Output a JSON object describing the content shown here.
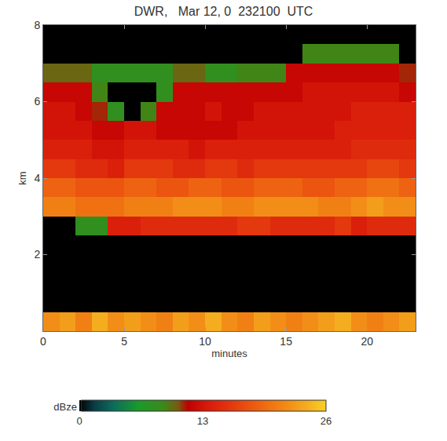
{
  "chart_data": {
    "type": "heatmap",
    "title": "DWR,   Mar 12, 0  232100  UTC",
    "xlabel": "minutes",
    "ylabel": "km",
    "x": [
      0.5,
      1.5,
      2.5,
      3.5,
      4.5,
      5.5,
      6.5,
      7.5,
      8.5,
      9.5,
      10.5,
      11.5,
      12.5,
      13.5,
      14.5,
      15.5,
      16.5,
      17.5,
      18.5,
      19.5,
      20.5,
      21.5,
      22.5
    ],
    "y": [
      0.25,
      0.75,
      1.25,
      1.75,
      2.25,
      2.75,
      3.25,
      3.75,
      4.25,
      4.75,
      5.25,
      5.75,
      6.25,
      6.75,
      7.25,
      7.75
    ],
    "z": [
      [
        22,
        23,
        21,
        24,
        22,
        23,
        22,
        21,
        23,
        22,
        24,
        22,
        21,
        23,
        22,
        21,
        22,
        23,
        24,
        22,
        21,
        22,
        23
      ],
      [
        null,
        null,
        null,
        null,
        null,
        null,
        null,
        null,
        null,
        null,
        null,
        null,
        null,
        null,
        null,
        null,
        null,
        null,
        null,
        null,
        null,
        null,
        null
      ],
      [
        null,
        null,
        null,
        null,
        null,
        null,
        null,
        null,
        null,
        null,
        null,
        null,
        null,
        null,
        null,
        null,
        null,
        null,
        null,
        null,
        null,
        null,
        null
      ],
      [
        null,
        null,
        null,
        null,
        null,
        null,
        null,
        null,
        null,
        null,
        null,
        null,
        null,
        null,
        null,
        null,
        null,
        null,
        null,
        null,
        null,
        null,
        null
      ],
      [
        null,
        null,
        null,
        null,
        null,
        null,
        null,
        null,
        null,
        null,
        null,
        null,
        null,
        null,
        null,
        null,
        null,
        null,
        null,
        null,
        null,
        null,
        null
      ],
      [
        null,
        null,
        8,
        8,
        14,
        14,
        15,
        15,
        15,
        15,
        15,
        15,
        16,
        16,
        15,
        15,
        15,
        15,
        16,
        14,
        15,
        15,
        15
      ],
      [
        21,
        21,
        20,
        20,
        20,
        21,
        21,
        21,
        22,
        22,
        22,
        21,
        21,
        22,
        22,
        22,
        22,
        21,
        21,
        22,
        23,
        22,
        22
      ],
      [
        19,
        19,
        18,
        18,
        18,
        19,
        19,
        18,
        18,
        19,
        19,
        18,
        18,
        19,
        19,
        19,
        18,
        18,
        19,
        19,
        20,
        20,
        19
      ],
      [
        16,
        16,
        15,
        15,
        14,
        16,
        16,
        16,
        15,
        15,
        16,
        16,
        15,
        16,
        16,
        16,
        16,
        16,
        16,
        16,
        17,
        17,
        16
      ],
      [
        14,
        14,
        14,
        13,
        13,
        14,
        14,
        14,
        14,
        13,
        14,
        14,
        14,
        14,
        14,
        14,
        14,
        14,
        14,
        15,
        15,
        15,
        15
      ],
      [
        13,
        13,
        13,
        12,
        12,
        13,
        13,
        12,
        12,
        12,
        12,
        12,
        13,
        13,
        13,
        13,
        13,
        13,
        14,
        14,
        14,
        14,
        14
      ],
      [
        13,
        13,
        12,
        11,
        8,
        null,
        9,
        12,
        12,
        12,
        13,
        12,
        12,
        13,
        13,
        13,
        13,
        13,
        13,
        14,
        14,
        14,
        14
      ],
      [
        12,
        12,
        12,
        9,
        null,
        null,
        null,
        8,
        12,
        12,
        12,
        12,
        12,
        12,
        12,
        12,
        13,
        13,
        13,
        13,
        13,
        13,
        12
      ],
      [
        10,
        10,
        10,
        8,
        8,
        8,
        8,
        8,
        10,
        10,
        8,
        8,
        9,
        9,
        9,
        12,
        12,
        12,
        12,
        12,
        12,
        12,
        11
      ],
      [
        null,
        null,
        null,
        null,
        null,
        null,
        null,
        null,
        null,
        null,
        null,
        null,
        null,
        null,
        null,
        null,
        9,
        9,
        9,
        9,
        9,
        9,
        null
      ],
      [
        null,
        null,
        null,
        null,
        null,
        null,
        null,
        null,
        null,
        null,
        null,
        null,
        null,
        null,
        null,
        null,
        null,
        null,
        null,
        null,
        null,
        null,
        null
      ]
    ],
    "xlim": [
      0,
      23
    ],
    "ylim": [
      0,
      8
    ],
    "xticks": [
      0,
      5,
      10,
      15,
      20
    ],
    "yticks": [
      2,
      4,
      6,
      8
    ],
    "colorbar": {
      "range": [
        0,
        26
      ],
      "ticks": [
        0,
        13,
        26
      ],
      "title": "dBze"
    }
  }
}
